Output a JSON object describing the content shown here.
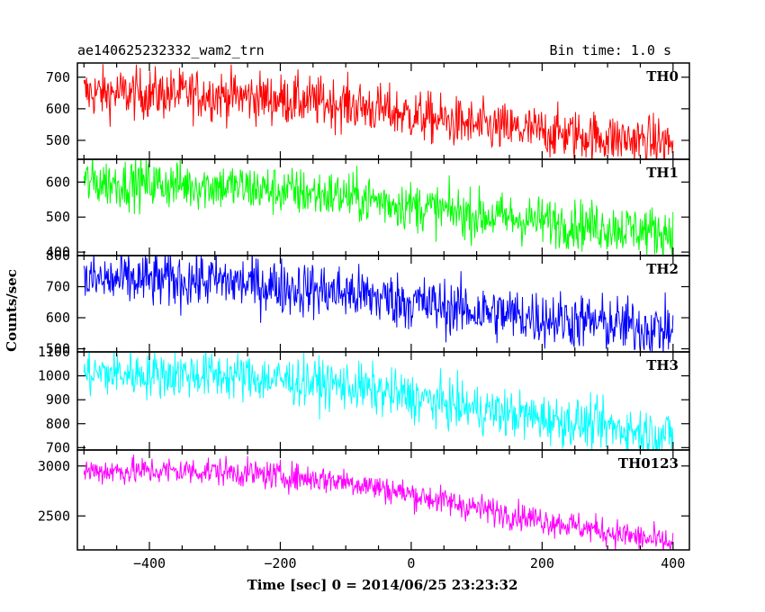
{
  "chart_data": {
    "type": "line",
    "title": "ae140625232332_wam2_trn",
    "bin_time_label": "Bin time: 1.0 s",
    "xlabel": "Time [sec] 0 = 2014/06/25 23:23:32",
    "ylabel": "Counts/sec",
    "xlim": [
      -510,
      425
    ],
    "x_ticks": [
      -400,
      -200,
      0,
      200,
      400
    ],
    "x_tick_labels": [
      "−400",
      "−200",
      "0",
      "200",
      "400"
    ],
    "x_range_data": [
      -500,
      400
    ],
    "grid": false,
    "panels": [
      {
        "name": "TH0",
        "color": "#ff0000",
        "ylim": [
          440,
          745
        ],
        "y_ticks": [
          500,
          600,
          700
        ],
        "y_tick_labels": [
          "500",
          "600",
          "700"
        ],
        "trend": [
          [
            -500,
            650
          ],
          [
            -300,
            645
          ],
          [
            -100,
            615
          ],
          [
            100,
            545
          ],
          [
            400,
            490
          ]
        ],
        "noise": 40
      },
      {
        "name": "TH1",
        "color": "#00ff00",
        "ylim": [
          390,
          665
        ],
        "y_ticks": [
          400,
          500,
          600
        ],
        "y_tick_labels": [
          "400",
          "500",
          "600"
        ],
        "trend": [
          [
            -500,
            600
          ],
          [
            -300,
            590
          ],
          [
            -100,
            560
          ],
          [
            100,
            505
          ],
          [
            400,
            455
          ]
        ],
        "noise": 35
      },
      {
        "name": "TH2",
        "color": "#0000ff",
        "ylim": [
          490,
          800
        ],
        "y_ticks": [
          500,
          600,
          700,
          800
        ],
        "y_tick_labels": [
          "500",
          "600",
          "700",
          "800"
        ],
        "trend": [
          [
            -500,
            720
          ],
          [
            -300,
            720
          ],
          [
            -100,
            680
          ],
          [
            100,
            620
          ],
          [
            400,
            560
          ]
        ],
        "noise": 45
      },
      {
        "name": "TH3",
        "color": "#00ffff",
        "ylim": [
          690,
          1100
        ],
        "y_ticks": [
          700,
          800,
          900,
          1000,
          1100
        ],
        "y_tick_labels": [
          "700",
          "800",
          "900",
          "1000",
          "1100"
        ],
        "trend": [
          [
            -500,
            1010
          ],
          [
            -300,
            1005
          ],
          [
            -100,
            960
          ],
          [
            100,
            860
          ],
          [
            400,
            750
          ]
        ],
        "noise": 50
      },
      {
        "name": "TH0123",
        "color": "#ff00ff",
        "ylim": [
          2160,
          3160
        ],
        "y_ticks": [
          2500,
          3000
        ],
        "y_tick_labels": [
          "2500",
          "3000"
        ],
        "trend": [
          [
            -500,
            2950
          ],
          [
            -300,
            2950
          ],
          [
            -100,
            2850
          ],
          [
            100,
            2580
          ],
          [
            400,
            2220
          ]
        ],
        "noise": 70
      }
    ]
  }
}
